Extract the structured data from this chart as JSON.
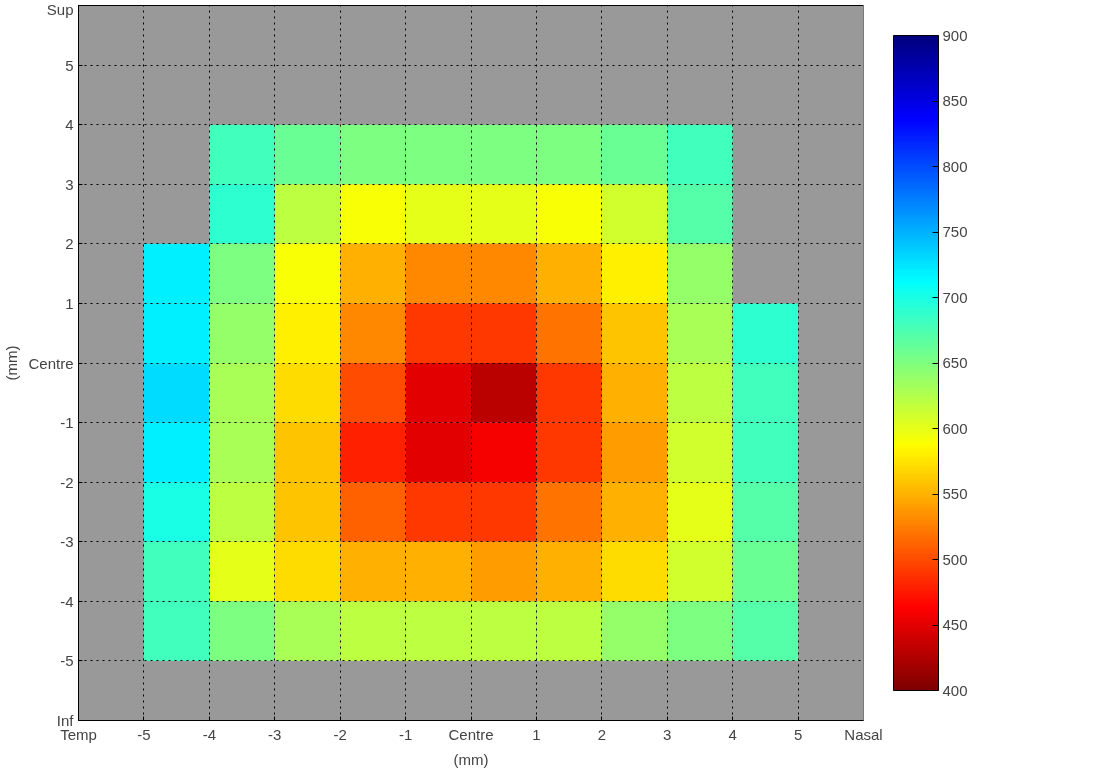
{
  "chart_data": {
    "type": "heatmap",
    "xlabel": "(mm)",
    "ylabel": "(mm)",
    "x": [
      -4.5,
      -3.5,
      -2.5,
      -1.5,
      -0.5,
      0.5,
      1.5,
      2.5,
      3.5,
      4.5
    ],
    "y": [
      3.5,
      2.5,
      1.5,
      0.5,
      -0.5,
      -1.5,
      -2.5,
      -3.5,
      -4.5
    ],
    "cells": [
      [
        null,
        680,
        660,
        650,
        650,
        650,
        650,
        660,
        680,
        null
      ],
      [
        null,
        690,
        620,
        590,
        600,
        600,
        590,
        610,
        670,
        null
      ],
      [
        720,
        650,
        590,
        550,
        530,
        530,
        550,
        580,
        640,
        null
      ],
      [
        720,
        640,
        580,
        530,
        490,
        490,
        520,
        560,
        630,
        690
      ],
      [
        730,
        630,
        570,
        500,
        450,
        430,
        490,
        550,
        620,
        680
      ],
      [
        720,
        630,
        560,
        480,
        450,
        460,
        490,
        540,
        610,
        680
      ],
      [
        700,
        620,
        560,
        510,
        490,
        490,
        520,
        550,
        600,
        670
      ],
      [
        680,
        600,
        570,
        550,
        550,
        540,
        550,
        570,
        610,
        660
      ],
      [
        680,
        650,
        630,
        620,
        620,
        620,
        620,
        640,
        650,
        670
      ]
    ],
    "xlim": [
      -6,
      6
    ],
    "ylim": [
      -6,
      6
    ],
    "xticks": [
      {
        "value": -6,
        "label": "Temp"
      },
      -5,
      -4,
      -3,
      -2,
      -1,
      {
        "value": 0,
        "label": "Centre"
      },
      1,
      2,
      3,
      4,
      5,
      {
        "value": 6,
        "label": "Nasal"
      }
    ],
    "yticks": [
      {
        "value": -6,
        "label": "Inf"
      },
      -5,
      -4,
      -3,
      -2,
      -1,
      {
        "value": 0,
        "label": "Centre"
      },
      1,
      2,
      3,
      4,
      5,
      {
        "value": 6,
        "label": "Sup"
      }
    ],
    "clim": [
      400,
      900
    ],
    "cticks": [
      400,
      450,
      500,
      550,
      600,
      650,
      700,
      750,
      800,
      850,
      900
    ],
    "grid": true
  }
}
